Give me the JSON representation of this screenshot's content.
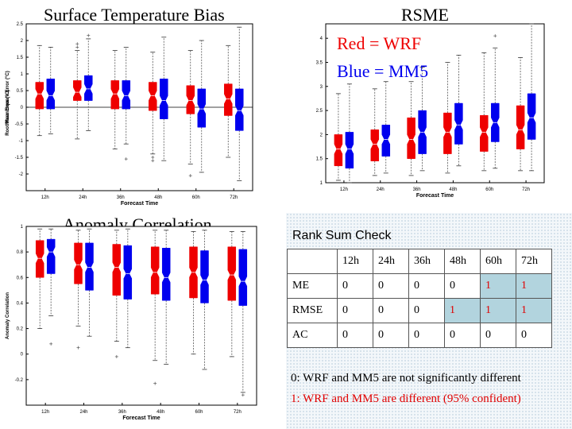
{
  "legend": {
    "wrf": {
      "text": "Red = WRF",
      "color": "#ee0000"
    },
    "mm5": {
      "text": "Blue = MM5",
      "color": "#0000ee"
    }
  },
  "charts": [
    {
      "title": "Surface Temperature Bias"
    },
    {
      "title": "RSME"
    },
    {
      "title": "Anomaly Correlation"
    }
  ],
  "chart_data": [
    {
      "type": "box",
      "title": "Surface Temperature Bias",
      "xlabel": "Forecast Time",
      "ylabel": "Mean Error (°C)",
      "ylim": [
        -2.5,
        2.5
      ],
      "yticks": [
        "-2",
        "-1.5",
        "-1",
        "-0.5",
        "0",
        "0.5",
        "1",
        "1.5",
        "2",
        "2.5"
      ],
      "ytick_values": [
        -2,
        -1.5,
        -1,
        -0.5,
        0,
        0.5,
        1,
        1.5,
        2,
        2.5
      ],
      "categories": [
        "12h",
        "24h",
        "36h",
        "48h",
        "60h",
        "72h"
      ],
      "zero_line": true,
      "series": [
        {
          "name": "WRF",
          "color": "#ee0000",
          "boxes": [
            {
              "q1": -0.05,
              "median": 0.4,
              "q3": 0.75,
              "wlo": -0.85,
              "whi": 1.85,
              "outliers": []
            },
            {
              "q1": 0.2,
              "median": 0.45,
              "q3": 0.8,
              "wlo": -0.95,
              "whi": 1.7,
              "outliers": [
                1.8,
                1.9
              ]
            },
            {
              "q1": -0.05,
              "median": 0.4,
              "q3": 0.8,
              "wlo": -1.25,
              "whi": 1.7,
              "outliers": []
            },
            {
              "q1": -0.1,
              "median": 0.35,
              "q3": 0.75,
              "wlo": -1.4,
              "whi": 1.65,
              "outliers": [
                -1.5,
                -1.6
              ]
            },
            {
              "q1": -0.2,
              "median": 0.2,
              "q3": 0.65,
              "wlo": -1.7,
              "whi": 1.7,
              "outliers": [
                -2.05
              ]
            },
            {
              "q1": -0.25,
              "median": 0.25,
              "q3": 0.7,
              "wlo": -1.5,
              "whi": 1.85,
              "outliers": []
            }
          ]
        },
        {
          "name": "MM5",
          "color": "#0000ee",
          "boxes": [
            {
              "q1": -0.05,
              "median": 0.35,
              "q3": 0.85,
              "wlo": -0.8,
              "whi": 1.8,
              "outliers": []
            },
            {
              "q1": 0.2,
              "median": 0.55,
              "q3": 0.95,
              "wlo": -0.7,
              "whi": 2.05,
              "outliers": [
                2.15
              ]
            },
            {
              "q1": -0.05,
              "median": 0.35,
              "q3": 0.8,
              "wlo": -1.1,
              "whi": 1.8,
              "outliers": [
                -1.55
              ]
            },
            {
              "q1": -0.35,
              "median": 0.2,
              "q3": 0.85,
              "wlo": -1.6,
              "whi": 2.1,
              "outliers": []
            },
            {
              "q1": -0.6,
              "median": -0.05,
              "q3": 0.55,
              "wlo": -1.95,
              "whi": 2.0,
              "outliers": []
            },
            {
              "q1": -0.7,
              "median": -0.1,
              "q3": 0.55,
              "wlo": -2.2,
              "whi": 2.4,
              "outliers": []
            }
          ]
        }
      ]
    },
    {
      "type": "box",
      "title": "RSME",
      "xlabel": "Forecast Time",
      "ylabel": "Root Mean Square Error (°C)",
      "ylim": [
        1,
        4.3
      ],
      "yticks": [
        "1",
        "1.5",
        "2",
        "2.5",
        "3",
        "3.5",
        "4"
      ],
      "ytick_values": [
        1,
        1.5,
        2,
        2.5,
        3,
        3.5,
        4
      ],
      "categories": [
        "12h",
        "24h",
        "36h",
        "48h",
        "60h",
        "72h"
      ],
      "zero_line": false,
      "series": [
        {
          "name": "WRF",
          "color": "#ee0000",
          "boxes": [
            {
              "q1": 1.35,
              "median": 1.7,
              "q3": 2.0,
              "wlo": 1.05,
              "whi": 2.85,
              "outliers": []
            },
            {
              "q1": 1.45,
              "median": 1.8,
              "q3": 2.1,
              "wlo": 1.15,
              "whi": 2.95,
              "outliers": []
            },
            {
              "q1": 1.5,
              "median": 1.9,
              "q3": 2.35,
              "wlo": 1.15,
              "whi": 3.1,
              "outliers": []
            },
            {
              "q1": 1.6,
              "median": 2.05,
              "q3": 2.45,
              "wlo": 1.2,
              "whi": 3.5,
              "outliers": []
            },
            {
              "q1": 1.65,
              "median": 2.05,
              "q3": 2.4,
              "wlo": 1.25,
              "whi": 3.7,
              "outliers": []
            },
            {
              "q1": 1.7,
              "median": 2.1,
              "q3": 2.6,
              "wlo": 1.25,
              "whi": 3.6,
              "outliers": []
            }
          ]
        },
        {
          "name": "MM5",
          "color": "#0000ee",
          "boxes": [
            {
              "q1": 1.3,
              "median": 1.7,
              "q3": 2.05,
              "wlo": 1.0,
              "whi": 3.05,
              "outliers": []
            },
            {
              "q1": 1.55,
              "median": 1.9,
              "q3": 2.2,
              "wlo": 1.2,
              "whi": 3.1,
              "outliers": []
            },
            {
              "q1": 1.6,
              "median": 2.05,
              "q3": 2.5,
              "wlo": 1.25,
              "whi": 3.4,
              "outliers": []
            },
            {
              "q1": 1.8,
              "median": 2.2,
              "q3": 2.65,
              "wlo": 1.35,
              "whi": 3.65,
              "outliers": []
            },
            {
              "q1": 1.85,
              "median": 2.25,
              "q3": 2.65,
              "wlo": 1.3,
              "whi": 3.8,
              "outliers": [
                4.05
              ]
            },
            {
              "q1": 1.9,
              "median": 2.35,
              "q3": 2.85,
              "wlo": 1.25,
              "whi": 4.3,
              "outliers": []
            }
          ]
        }
      ]
    },
    {
      "type": "box",
      "title": "Anomaly Correlation",
      "xlabel": "Forecast Time",
      "ylabel": "Anomaly Correlation",
      "ylim": [
        -0.4,
        1.0
      ],
      "yticks": [
        "-0.2",
        "0",
        "0.2",
        "0.4",
        "0.6",
        "0.8",
        "1"
      ],
      "ytick_values": [
        -0.2,
        0,
        0.2,
        0.4,
        0.6,
        0.8,
        1
      ],
      "categories": [
        "12h",
        "24h",
        "36h",
        "48h",
        "60h",
        "72h"
      ],
      "zero_line": false,
      "series": [
        {
          "name": "WRF",
          "color": "#ee0000",
          "boxes": [
            {
              "q1": 0.6,
              "median": 0.75,
              "q3": 0.89,
              "wlo": 0.2,
              "whi": 0.98,
              "outliers": []
            },
            {
              "q1": 0.55,
              "median": 0.7,
              "q3": 0.87,
              "wlo": 0.22,
              "whi": 0.97,
              "outliers": [
                0.05
              ]
            },
            {
              "q1": 0.46,
              "median": 0.68,
              "q3": 0.86,
              "wlo": 0.1,
              "whi": 0.97,
              "outliers": [
                -0.02
              ]
            },
            {
              "q1": 0.47,
              "median": 0.64,
              "q3": 0.84,
              "wlo": -0.05,
              "whi": 0.97,
              "outliers": [
                -0.23
              ]
            },
            {
              "q1": 0.44,
              "median": 0.64,
              "q3": 0.84,
              "wlo": 0.0,
              "whi": 0.96,
              "outliers": []
            },
            {
              "q1": 0.42,
              "median": 0.62,
              "q3": 0.84,
              "wlo": -0.02,
              "whi": 0.96,
              "outliers": []
            }
          ]
        },
        {
          "name": "MM5",
          "color": "#0000ee",
          "boxes": [
            {
              "q1": 0.63,
              "median": 0.8,
              "q3": 0.9,
              "wlo": 0.3,
              "whi": 0.98,
              "outliers": [
                0.08
              ]
            },
            {
              "q1": 0.5,
              "median": 0.68,
              "q3": 0.87,
              "wlo": 0.14,
              "whi": 0.98,
              "outliers": []
            },
            {
              "q1": 0.43,
              "median": 0.63,
              "q3": 0.85,
              "wlo": 0.05,
              "whi": 0.98,
              "outliers": []
            },
            {
              "q1": 0.42,
              "median": 0.6,
              "q3": 0.83,
              "wlo": -0.08,
              "whi": 0.97,
              "outliers": []
            },
            {
              "q1": 0.4,
              "median": 0.58,
              "q3": 0.81,
              "wlo": -0.12,
              "whi": 0.97,
              "outliers": []
            },
            {
              "q1": 0.38,
              "median": 0.57,
              "q3": 0.82,
              "wlo": -0.3,
              "whi": 0.96,
              "outliers": [
                -0.32
              ]
            }
          ]
        }
      ]
    }
  ],
  "rank": {
    "title": "Rank Sum Check",
    "columns": [
      "12h",
      "24h",
      "36h",
      "48h",
      "60h",
      "72h"
    ],
    "rows": [
      {
        "label": "ME",
        "values": [
          "0",
          "0",
          "0",
          "0",
          "1",
          "1"
        ]
      },
      {
        "label": "RMSE",
        "values": [
          "0",
          "0",
          "0",
          "1",
          "1",
          "1"
        ]
      },
      {
        "label": "AC",
        "values": [
          "0",
          "0",
          "0",
          "0",
          "0",
          "0"
        ]
      }
    ],
    "highlight_color": "#b2d4de",
    "different_color": "#e00000",
    "note0": "0: WRF and MM5 are not significantly different",
    "note1": "1: WRF and MM5 are different (95% confident)"
  }
}
